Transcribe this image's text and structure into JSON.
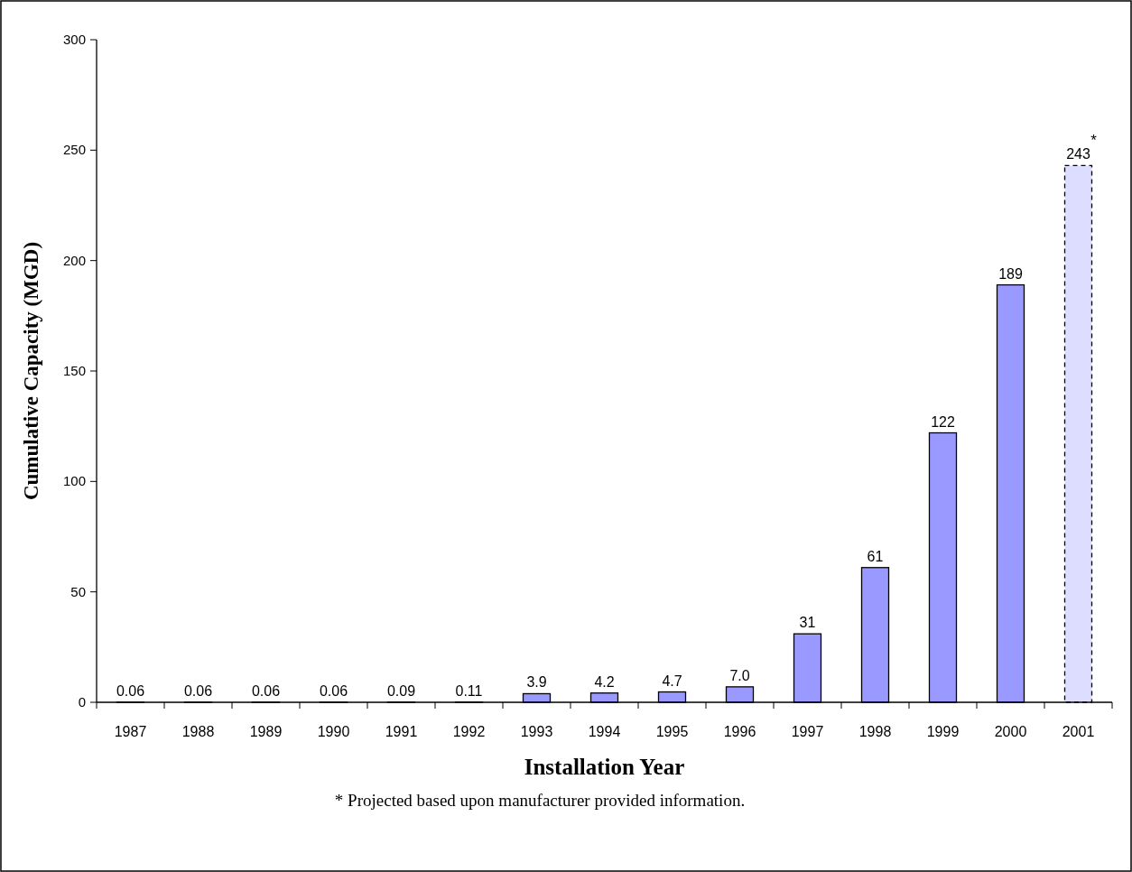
{
  "chart_data": {
    "type": "bar",
    "xlabel": "Installation Year",
    "ylabel": "Cumulative Capacity (MGD)",
    "categories": [
      "1987",
      "1988",
      "1989",
      "1990",
      "1991",
      "1992",
      "1993",
      "1994",
      "1995",
      "1996",
      "1997",
      "1998",
      "1999",
      "2000",
      "2001"
    ],
    "stacked": true,
    "series": [
      {
        "color": "#9999ff",
        "values": [
          0.06,
          0.06,
          0.06,
          0.06,
          0.09,
          0.11,
          3.9,
          4.2,
          4.7,
          7.0,
          31,
          61,
          122,
          189,
          null
        ],
        "value_labels": [
          "0.06",
          "0.06",
          "0.06",
          "0.06",
          "0.09",
          "0.11",
          "3.9",
          "4.2",
          "4.7",
          "7.0",
          "31",
          "61",
          "122",
          "189",
          null
        ]
      },
      {
        "color": "#ddddff",
        "line_style": "dashed",
        "values": [
          null,
          null,
          null,
          null,
          null,
          null,
          null,
          null,
          null,
          null,
          null,
          null,
          null,
          null,
          243
        ],
        "value_labels": [
          null,
          null,
          null,
          null,
          null,
          null,
          null,
          null,
          null,
          null,
          null,
          null,
          null,
          null,
          "243"
        ]
      }
    ],
    "ylim": [
      0,
      300
    ],
    "yticks": [
      0,
      50,
      100,
      150,
      200,
      250,
      300
    ],
    "grid": false,
    "annotations": [
      {
        "text": "*",
        "x": "2001",
        "y": 243
      },
      "* Projected based upon manufacturer provided information."
    ]
  }
}
